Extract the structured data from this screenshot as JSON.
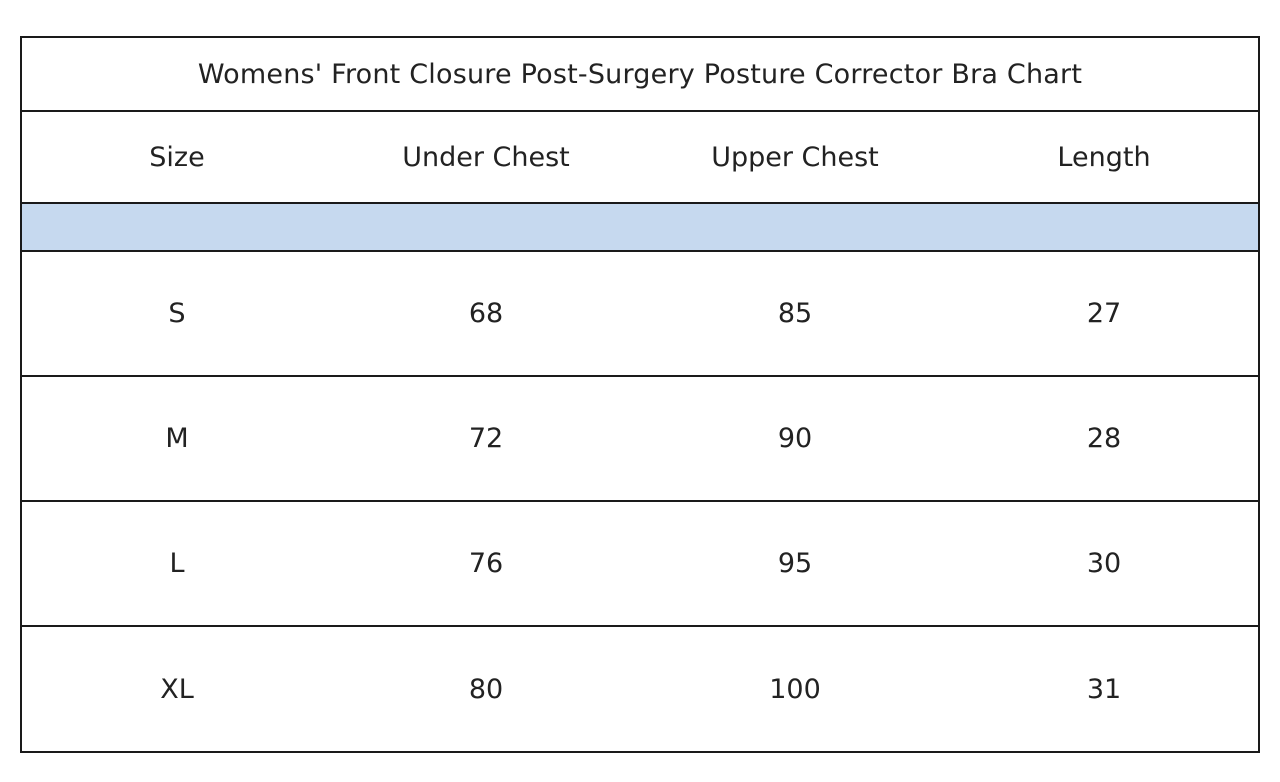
{
  "chart_data": {
    "type": "table",
    "title": "Womens' Front Closure Post-Surgery Posture Corrector Bra Chart",
    "columns": [
      "Size",
      "Under Chest",
      "Upper Chest",
      "Length"
    ],
    "rows": [
      [
        "S",
        "68",
        "85",
        "27"
      ],
      [
        "M",
        "72",
        "90",
        "28"
      ],
      [
        "L",
        "76",
        "95",
        "30"
      ],
      [
        "XL",
        "80",
        "100",
        "31"
      ]
    ]
  },
  "colors": {
    "band": "#c6d9ef",
    "border": "#1a1a1a",
    "text": "#222222"
  }
}
